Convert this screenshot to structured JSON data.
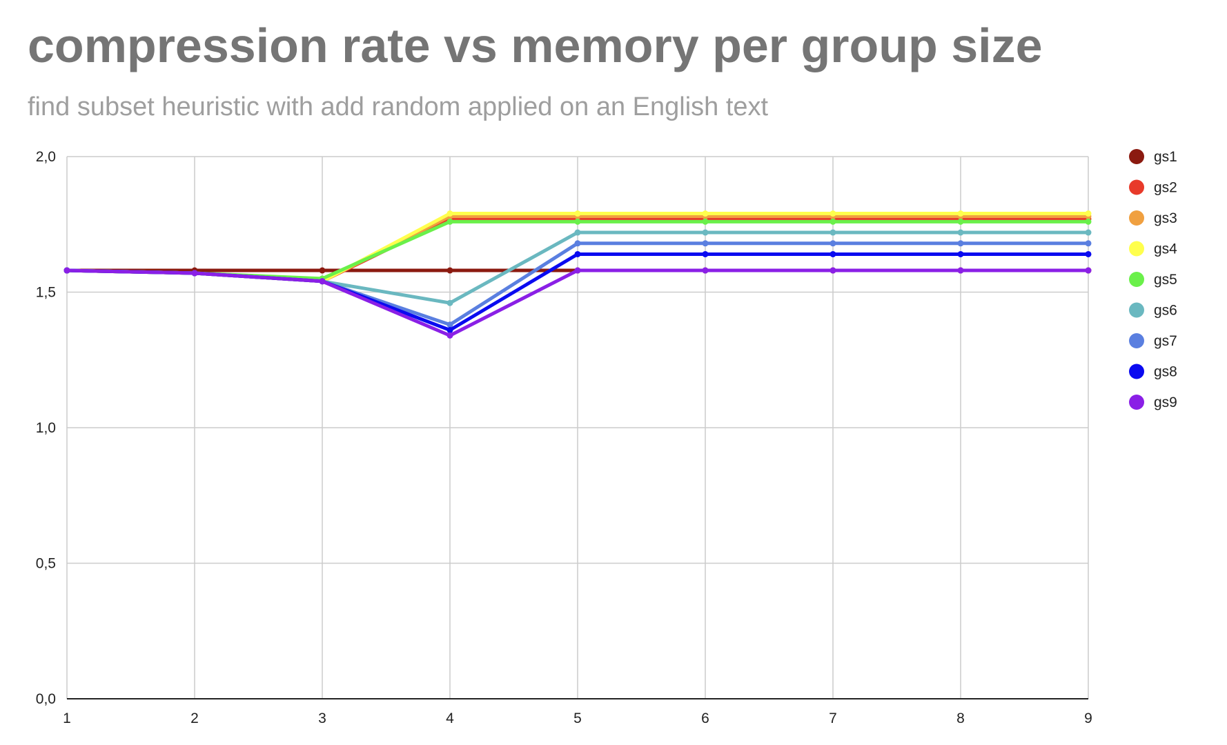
{
  "chart_data": {
    "type": "line",
    "title": "compression rate vs memory per group size",
    "subtitle": "find subset heuristic with add random applied on an English text",
    "xlabel": "",
    "ylabel": "",
    "x": [
      1,
      2,
      3,
      4,
      5,
      6,
      7,
      8,
      9
    ],
    "x_tick_labels": [
      "1",
      "2",
      "3",
      "4",
      "5",
      "6",
      "7",
      "8",
      "9"
    ],
    "ylim": [
      0,
      2
    ],
    "y_ticks": [
      0,
      0.5,
      1.0,
      1.5,
      2.0
    ],
    "y_tick_labels": [
      "0,0",
      "0,5",
      "1,0",
      "1,5",
      "2,0"
    ],
    "grid": true,
    "legend_position": "right",
    "series": [
      {
        "name": "gs1",
        "color": "#8b1a10",
        "values": [
          1.58,
          1.58,
          1.58,
          1.58,
          1.58,
          1.58,
          1.58,
          1.58,
          1.58
        ]
      },
      {
        "name": "gs2",
        "color": "#e83a2a",
        "values": [
          1.58,
          1.57,
          1.54,
          1.77,
          1.77,
          1.77,
          1.77,
          1.77,
          1.77
        ]
      },
      {
        "name": "gs3",
        "color": "#f0a040",
        "values": [
          1.58,
          1.57,
          1.54,
          1.78,
          1.78,
          1.78,
          1.78,
          1.78,
          1.78
        ]
      },
      {
        "name": "gs4",
        "color": "#ffff4d",
        "values": [
          1.58,
          1.57,
          1.54,
          1.79,
          1.79,
          1.79,
          1.79,
          1.79,
          1.79
        ]
      },
      {
        "name": "gs5",
        "color": "#6af04a",
        "values": [
          1.58,
          1.57,
          1.55,
          1.76,
          1.76,
          1.76,
          1.76,
          1.76,
          1.76
        ]
      },
      {
        "name": "gs6",
        "color": "#6ab8c0",
        "values": [
          1.58,
          1.57,
          1.54,
          1.46,
          1.72,
          1.72,
          1.72,
          1.72,
          1.72
        ]
      },
      {
        "name": "gs7",
        "color": "#5a7fe0",
        "values": [
          1.58,
          1.57,
          1.54,
          1.38,
          1.68,
          1.68,
          1.68,
          1.68,
          1.68
        ]
      },
      {
        "name": "gs8",
        "color": "#0a0af0",
        "values": [
          1.58,
          1.57,
          1.54,
          1.36,
          1.64,
          1.64,
          1.64,
          1.64,
          1.64
        ]
      },
      {
        "name": "gs9",
        "color": "#8a1fe6",
        "values": [
          1.58,
          1.57,
          1.54,
          1.34,
          1.58,
          1.58,
          1.58,
          1.58,
          1.58
        ]
      }
    ]
  }
}
